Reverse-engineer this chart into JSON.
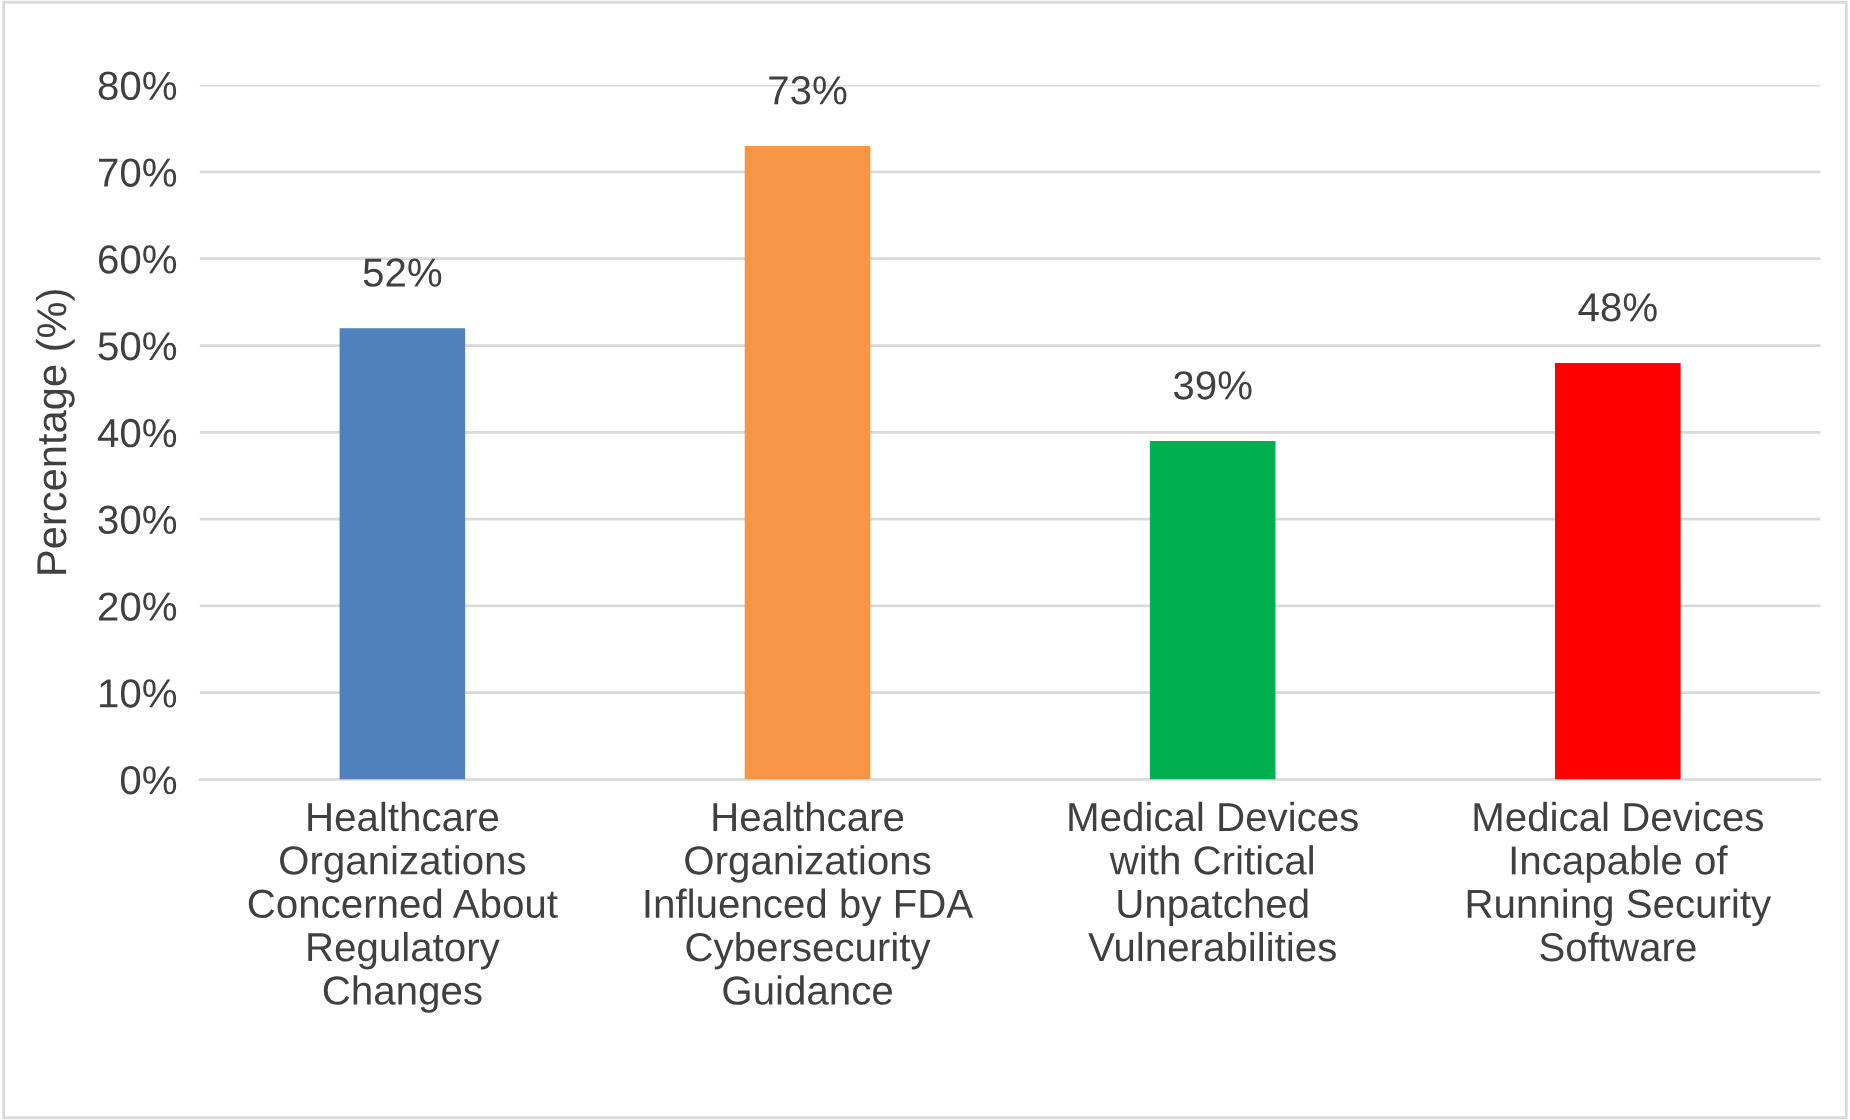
{
  "chart_data": {
    "type": "bar",
    "ylabel": "Percentage (%)",
    "categories": [
      "Healthcare\nOrganizations\nConcerned About\nRegulatory\nChanges",
      "Healthcare\nOrganizations\nInfluenced by FDA\nCybersecurity\nGuidance",
      "Medical Devices\nwith Critical\nUnpatched\nVulnerabilities",
      "Medical Devices\nIncapable of\nRunning Security\nSoftware"
    ],
    "values": [
      52,
      73,
      39,
      48
    ],
    "colors": [
      "#4f81bd",
      "#f79646",
      "#00b050",
      "#ff0000"
    ],
    "value_labels": [
      "52%",
      "73%",
      "39%",
      "48%"
    ],
    "ylim": [
      0,
      80
    ],
    "yticks": [
      {
        "value": 0,
        "label": "0%"
      },
      {
        "value": 10,
        "label": "10%"
      },
      {
        "value": 20,
        "label": "20%"
      },
      {
        "value": 30,
        "label": "30%"
      },
      {
        "value": 40,
        "label": "40%"
      },
      {
        "value": 50,
        "label": "50%"
      },
      {
        "value": 60,
        "label": "60%"
      },
      {
        "value": 70,
        "label": "70%"
      },
      {
        "value": 80,
        "label": "80%"
      }
    ],
    "grid": "y",
    "legend": false
  }
}
